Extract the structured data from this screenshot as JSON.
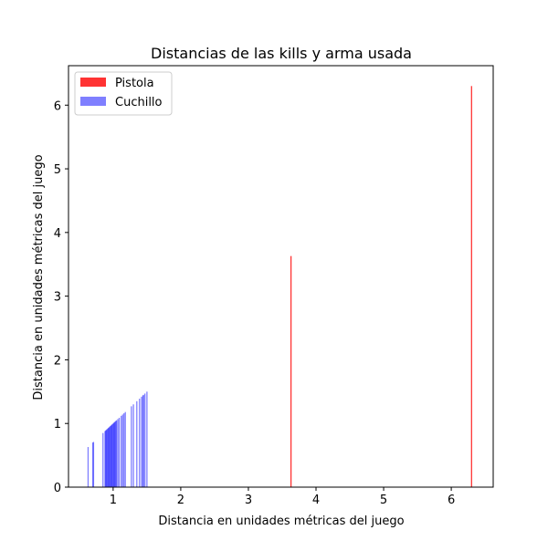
{
  "chart_data": {
    "type": "bar",
    "title": "Distancias de las kills y arma usada",
    "xlabel": "Distancia en unidades métricas del juego",
    "ylabel": "Distancia en unidades métricas del juego",
    "xlim": [
      0.34,
      6.62
    ],
    "ylim": [
      0,
      6.62
    ],
    "xticks": [
      1,
      2,
      3,
      4,
      5,
      6
    ],
    "yticks": [
      0,
      1,
      2,
      3,
      4,
      5,
      6
    ],
    "grid": false,
    "legend_position": "top-left",
    "series": [
      {
        "name": "Pistola",
        "color": "#ff0000",
        "alpha": 0.8,
        "points": [
          {
            "x": 3.63,
            "y": 3.63
          },
          {
            "x": 6.3,
            "y": 6.3
          }
        ]
      },
      {
        "name": "Cuchillo",
        "color": "#0000ff",
        "alpha": 0.5,
        "points": [
          {
            "x": 0.63,
            "y": 0.63
          },
          {
            "x": 0.7,
            "y": 0.7
          },
          {
            "x": 0.71,
            "y": 0.71
          },
          {
            "x": 0.85,
            "y": 0.85
          },
          {
            "x": 0.88,
            "y": 0.88
          },
          {
            "x": 0.89,
            "y": 0.89
          },
          {
            "x": 0.9,
            "y": 0.9
          },
          {
            "x": 0.91,
            "y": 0.91
          },
          {
            "x": 0.92,
            "y": 0.92
          },
          {
            "x": 0.93,
            "y": 0.93
          },
          {
            "x": 0.94,
            "y": 0.94
          },
          {
            "x": 0.95,
            "y": 0.95
          },
          {
            "x": 0.96,
            "y": 0.96
          },
          {
            "x": 0.97,
            "y": 0.97
          },
          {
            "x": 0.98,
            "y": 0.98
          },
          {
            "x": 0.99,
            "y": 0.99
          },
          {
            "x": 1.0,
            "y": 1.0
          },
          {
            "x": 1.01,
            "y": 1.01
          },
          {
            "x": 1.02,
            "y": 1.02
          },
          {
            "x": 1.03,
            "y": 1.03
          },
          {
            "x": 1.04,
            "y": 1.04
          },
          {
            "x": 1.05,
            "y": 1.05
          },
          {
            "x": 1.07,
            "y": 1.07
          },
          {
            "x": 1.09,
            "y": 1.09
          },
          {
            "x": 1.12,
            "y": 1.12
          },
          {
            "x": 1.14,
            "y": 1.14
          },
          {
            "x": 1.16,
            "y": 1.16
          },
          {
            "x": 1.18,
            "y": 1.18
          },
          {
            "x": 1.27,
            "y": 1.27
          },
          {
            "x": 1.3,
            "y": 1.3
          },
          {
            "x": 1.35,
            "y": 1.35
          },
          {
            "x": 1.39,
            "y": 1.39
          },
          {
            "x": 1.42,
            "y": 1.42
          },
          {
            "x": 1.44,
            "y": 1.44
          },
          {
            "x": 1.45,
            "y": 1.45
          },
          {
            "x": 1.47,
            "y": 1.47
          },
          {
            "x": 1.5,
            "y": 1.5
          }
        ]
      }
    ]
  }
}
